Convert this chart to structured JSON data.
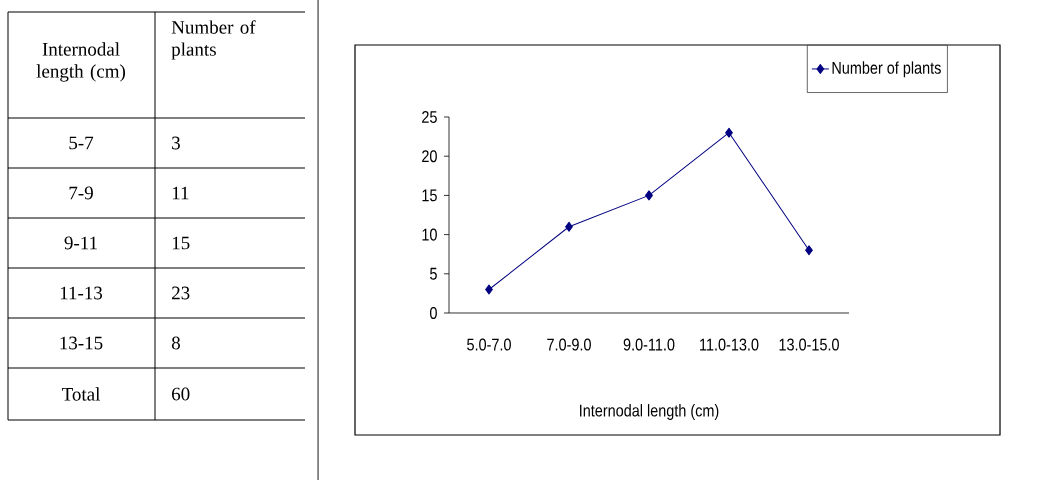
{
  "chart_data": [
    {
      "type": "other",
      "xlabel": "Internodal length (cm)",
      "ylabel": "Number of plants",
      "categories": [
        "5-7",
        "7-9",
        "9-11",
        "11-13",
        "13-15"
      ],
      "values": [
        3,
        11,
        15,
        23,
        8
      ],
      "data_labels": true,
      "annotations": [
        "Total",
        "60"
      ]
    },
    {
      "type": "line",
      "xlabel": "Internodal length (cm)",
      "categories": [
        "5.0-7.0",
        "7.0-9.0",
        "9.0-11.0",
        "11.0-13.0",
        "13.0-15.0"
      ],
      "series": [
        {
          "name": "Number of plants",
          "color": "#000080",
          "values": [
            3,
            11,
            15,
            23,
            8
          ]
        }
      ],
      "ylim": [
        0,
        25
      ],
      "yticks": [
        0,
        5,
        10,
        15,
        20,
        25
      ],
      "legend": "top right",
      "marker": "diamond",
      "line_style": "solid"
    }
  ]
}
